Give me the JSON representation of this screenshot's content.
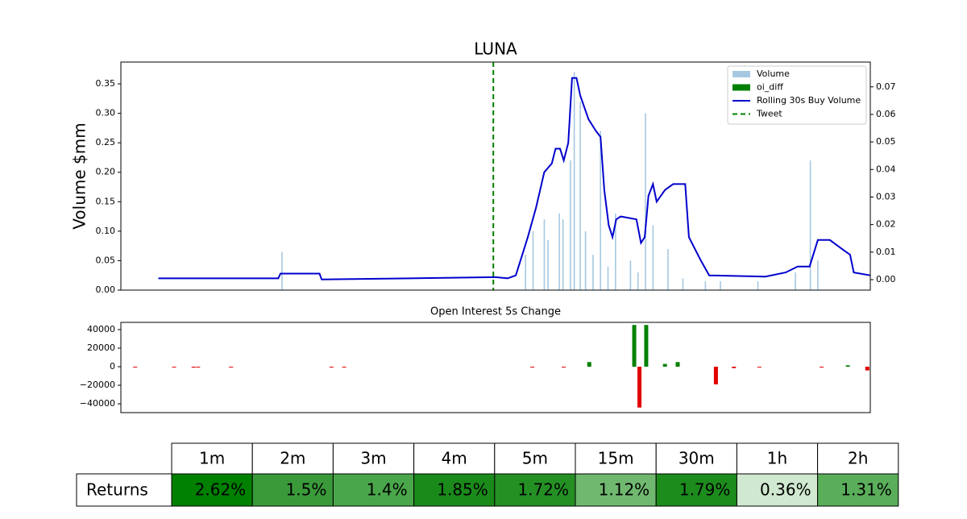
{
  "chart_data": [
    {
      "type": "bar_line",
      "title": "LUNA",
      "ylabel": "Volume $mm",
      "xlim": [
        0,
        100
      ],
      "ylim": [
        0,
        0.387
      ],
      "yticks": [
        {
          "value": 0,
          "label": "0.00"
        },
        {
          "value": 0.05,
          "label": "0.05"
        },
        {
          "value": 0.1,
          "label": "0.10"
        },
        {
          "value": 0.15,
          "label": "0.15"
        },
        {
          "value": 0.2,
          "label": "0.20"
        },
        {
          "value": 0.25,
          "label": "0.25"
        },
        {
          "value": 0.3,
          "label": "0.30"
        },
        {
          "value": 0.35,
          "label": "0.35"
        }
      ],
      "y2lim": [
        -0.0038,
        0.079
      ],
      "y2ticks": [
        {
          "value": 0,
          "label": "0.00"
        },
        0.01,
        0.02,
        0.03,
        0.04,
        0.05,
        0.06,
        0.07
      ],
      "legend": "upper right",
      "series": [
        {
          "name": "Volume",
          "type": "bar",
          "color": "#a6c8e0",
          "x": [
            21.5,
            54,
            55,
            56.5,
            57,
            58.5,
            59,
            60,
            60.5,
            61.3,
            62,
            63,
            64,
            65,
            66,
            68,
            69,
            70,
            71,
            73,
            75,
            78,
            80,
            85,
            90,
            92,
            93
          ],
          "values": [
            0.065,
            0.06,
            0.1,
            0.12,
            0.085,
            0.13,
            0.12,
            0.22,
            0.37,
            0.32,
            0.1,
            0.06,
            0.27,
            0.04,
            0.13,
            0.05,
            0.03,
            0.3,
            0.11,
            0.07,
            0.02,
            0.015,
            0.015,
            0.015,
            0.03,
            0.22,
            0.05
          ]
        },
        {
          "name": "oi_diff",
          "type": "bar",
          "color": "#008000",
          "axis": "y2"
        },
        {
          "name": "Rolling 30s Buy Volume",
          "type": "line",
          "color": "#0000cd",
          "x": [
            5,
            21,
            21.3,
            26.5,
            26.8,
            50,
            51.6,
            52.7,
            54.3,
            55.4,
            56.5,
            57.5,
            58,
            58.6,
            59.1,
            59.7,
            60.2,
            60.8,
            61.3,
            62.4,
            63.4,
            64,
            64.5,
            65.1,
            65.6,
            66.1,
            66.7,
            68.8,
            69.4,
            69.9,
            70.4,
            71,
            71.5,
            72.6,
            73.7,
            75.3,
            75.8,
            77.4,
            78.5,
            86,
            88.7,
            90.3,
            91.9,
            93,
            94.6,
            96.2,
            97.3,
            97.8,
            100
          ],
          "values": [
            0.02,
            0.02,
            0.028,
            0.028,
            0.018,
            0.022,
            0.02,
            0.025,
            0.09,
            0.14,
            0.2,
            0.215,
            0.24,
            0.24,
            0.22,
            0.25,
            0.36,
            0.36,
            0.33,
            0.29,
            0.27,
            0.26,
            0.17,
            0.11,
            0.09,
            0.12,
            0.125,
            0.12,
            0.08,
            0.09,
            0.16,
            0.18,
            0.15,
            0.17,
            0.18,
            0.18,
            0.09,
            0.05,
            0.025,
            0.023,
            0.03,
            0.04,
            0.04,
            0.085,
            0.085,
            0.07,
            0.06,
            0.03,
            0.025
          ]
        }
      ],
      "vlines": [
        {
          "name": "Tweet",
          "x": 49.7,
          "color": "#008000"
        }
      ]
    },
    {
      "type": "bar",
      "title": "Open Interest 5s Change",
      "xlim": [
        0,
        100
      ],
      "ylim": [
        -49500,
        47800
      ],
      "yticks": [
        {
          "value": -40000,
          "label": "−40000"
        },
        {
          "value": -20000,
          "label": "−20000"
        },
        0,
        20000,
        40000
      ],
      "positive_color": "#008000",
      "negative_color": "#e00000",
      "x": [
        1.9,
        7.1,
        9.7,
        10.3,
        14.7,
        28.1,
        29.8,
        54.9,
        59.1,
        62.5,
        68.5,
        69.2,
        70.1,
        72.6,
        74.3,
        79.4,
        81.8,
        85.2,
        93.5,
        97,
        99.6
      ],
      "values": [
        -500,
        -500,
        -1000,
        -500,
        -500,
        -500,
        -500,
        -500,
        -500,
        5000,
        45000,
        -44000,
        45000,
        3000,
        5000,
        -19000,
        -1500,
        -500,
        -500,
        1500,
        -4000
      ]
    }
  ],
  "table": {
    "header": [
      "1m",
      "2m",
      "3m",
      "4m",
      "5m",
      "15m",
      "30m",
      "1h",
      "2h"
    ],
    "row_label": "Returns",
    "values": [
      "2.62%",
      "1.5%",
      "1.4%",
      "1.85%",
      "1.72%",
      "1.12%",
      "1.79%",
      "0.36%",
      "1.31%"
    ],
    "colors": [
      "#008000",
      "#3a9a3a",
      "#4aa64a",
      "#1a8a1a",
      "#249024",
      "#70b870",
      "#1c8c1c",
      "#cfe8cf",
      "#5aae5a"
    ]
  }
}
